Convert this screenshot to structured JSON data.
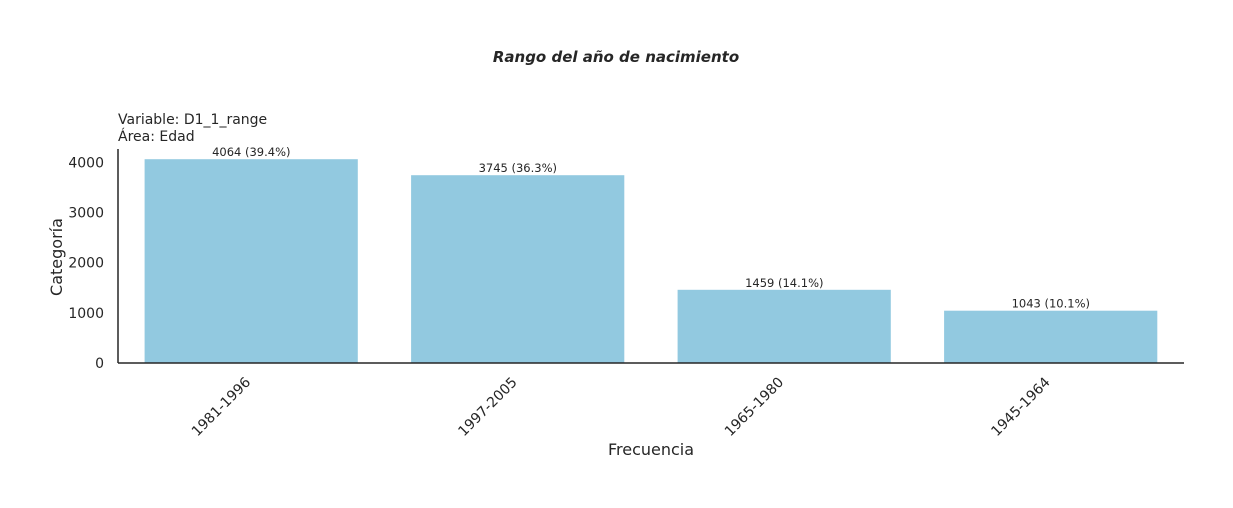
{
  "chart_data": {
    "type": "bar",
    "title": "Rango del año de nacimiento",
    "subtitle_lines": [
      "Variable: D1_1_range",
      "Área: Edad"
    ],
    "xlabel": "Frecuencia",
    "ylabel": "Categoría",
    "categories": [
      "1981-1996",
      "1997-2005",
      "1965-1980",
      "1945-1964"
    ],
    "values": [
      4064,
      3745,
      1459,
      1043
    ],
    "data_labels": [
      "4064 (39.4%)",
      "3745 (36.3%)",
      "1459 (14.1%)",
      "1043 (10.1%)"
    ],
    "yticks": [
      0,
      1000,
      2000,
      3000,
      4000
    ],
    "ylim": [
      0,
      4267
    ],
    "grid": false,
    "bar_color": "#92c9e0"
  }
}
